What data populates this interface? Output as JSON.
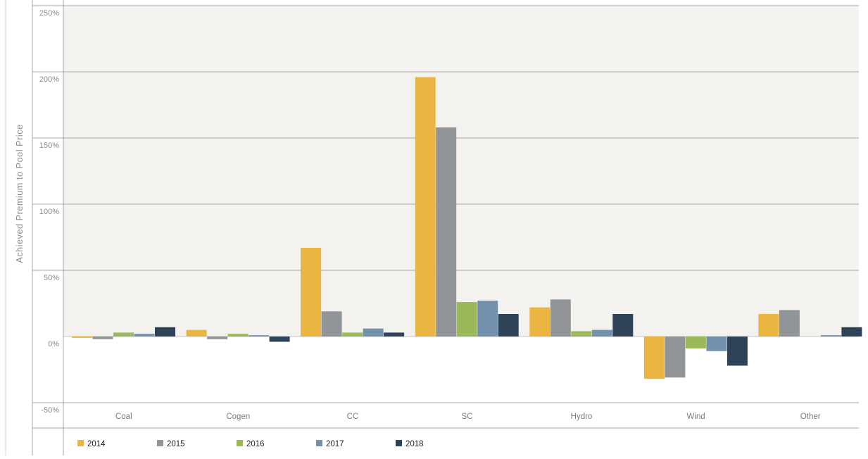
{
  "chart_data": {
    "type": "bar",
    "title": "",
    "xlabel": "",
    "ylabel": "Achieved Premium to Pool Price",
    "ylim": [
      -50,
      250
    ],
    "yticks": [
      "250%",
      "200%",
      "150%",
      "100%",
      "50%",
      "0%",
      "-50%"
    ],
    "ytick_values": [
      250,
      200,
      150,
      100,
      50,
      0,
      -50
    ],
    "grid": true,
    "legend_position": "bottom",
    "categories": [
      "Coal",
      "Cogen",
      "CC",
      "SC",
      "Hydro",
      "Wind",
      "Other"
    ],
    "series": [
      {
        "name": "2014",
        "color": "#ebb542",
        "values": [
          -1,
          5,
          67,
          196,
          22,
          -32,
          17
        ]
      },
      {
        "name": "2015",
        "color": "#929597",
        "values": [
          -2,
          -2,
          19,
          158,
          28,
          -31,
          20
        ]
      },
      {
        "name": "2016",
        "color": "#9bb95a",
        "values": [
          3,
          2,
          3,
          26,
          4,
          -9,
          0
        ]
      },
      {
        "name": "2017",
        "color": "#7390ad",
        "values": [
          2,
          1,
          6,
          27,
          5,
          -11,
          1
        ]
      },
      {
        "name": "2018",
        "color": "#2e4358",
        "values": [
          7,
          -4,
          3,
          17,
          17,
          -22,
          7
        ]
      }
    ]
  }
}
